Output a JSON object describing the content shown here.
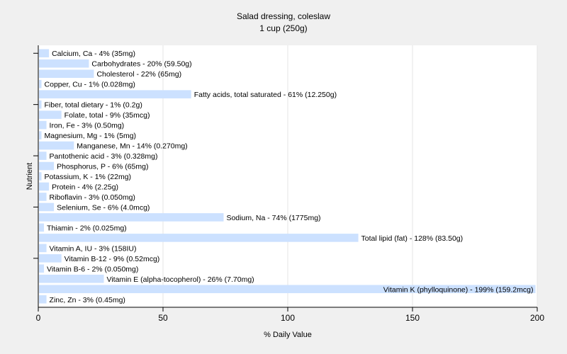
{
  "chart_data": {
    "type": "bar",
    "orientation": "horizontal",
    "title": "Salad dressing, coleslaw",
    "subtitle": "1 cup (250g)",
    "xlabel": "% Daily Value",
    "ylabel": "Nutrient",
    "xlim": [
      0,
      200
    ],
    "xticks": [
      0,
      50,
      100,
      150,
      200
    ],
    "grid": true,
    "bar_color": "#cce1ff",
    "categories": [
      "Calcium, Ca",
      "Carbohydrates",
      "Cholesterol",
      "Copper, Cu",
      "Fatty acids, total saturated",
      "Fiber, total dietary",
      "Folate, total",
      "Iron, Fe",
      "Magnesium, Mg",
      "Manganese, Mn",
      "Pantothenic acid",
      "Phosphorus, P",
      "Potassium, K",
      "Protein",
      "Riboflavin",
      "Selenium, Se",
      "Sodium, Na",
      "Thiamin",
      "Total lipid (fat)",
      "Vitamin A, IU",
      "Vitamin B-12",
      "Vitamin B-6",
      "Vitamin E (alpha-tocopherol)",
      "Vitamin K (phylloquinone)",
      "Zinc, Zn"
    ],
    "values": [
      4,
      20,
      22,
      1,
      61,
      1,
      9,
      3,
      1,
      14,
      3,
      6,
      1,
      4,
      3,
      6,
      74,
      2,
      128,
      3,
      9,
      2,
      26,
      199,
      3
    ],
    "labels": [
      "Calcium, Ca - 4% (35mg)",
      "Carbohydrates - 20% (59.50g)",
      "Cholesterol - 22% (65mg)",
      "Copper, Cu - 1% (0.028mg)",
      "Fatty acids, total saturated - 61% (12.250g)",
      "Fiber, total dietary - 1% (0.2g)",
      "Folate, total - 9% (35mcg)",
      "Iron, Fe - 3% (0.50mg)",
      "Magnesium, Mg - 1% (5mg)",
      "Manganese, Mn - 14% (0.270mg)",
      "Pantothenic acid - 3% (0.328mg)",
      "Phosphorus, P - 6% (65mg)",
      "Potassium, K - 1% (22mg)",
      "Protein - 4% (2.25g)",
      "Riboflavin - 3% (0.050mg)",
      "Selenium, Se - 6% (4.0mcg)",
      "Sodium, Na - 74% (1775mg)",
      "Thiamin - 2% (0.025mg)",
      "Total lipid (fat) - 128% (83.50g)",
      "Vitamin A, IU - 3% (158IU)",
      "Vitamin B-12 - 9% (0.52mcg)",
      "Vitamin B-6 - 2% (0.050mg)",
      "Vitamin E (alpha-tocopherol) - 26% (7.70mg)",
      "Vitamin K (phylloquinone) - 199% (159.2mcg)",
      "Zinc, Zn - 3% (0.45mg)"
    ]
  }
}
